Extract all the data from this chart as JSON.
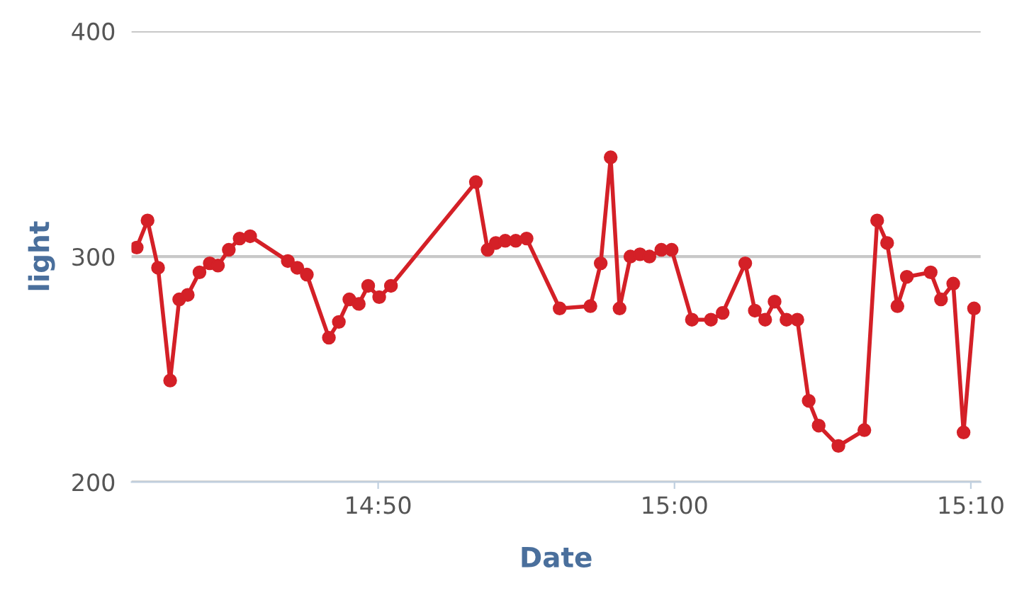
{
  "chart_data": {
    "type": "line",
    "xlabel": "Date",
    "ylabel": "light",
    "x": [
      14.6975,
      14.7036,
      14.7095,
      14.7163,
      14.7214,
      14.7262,
      14.7328,
      14.7386,
      14.7432,
      14.7493,
      14.7554,
      14.7613,
      14.7825,
      14.7878,
      14.7932,
      14.8056,
      14.8112,
      14.8171,
      14.8224,
      14.8277,
      14.8339,
      14.8405,
      14.8883,
      14.8949,
      14.8995,
      14.9048,
      14.9107,
      14.9168,
      14.9354,
      14.9527,
      14.9585,
      14.9641,
      14.9691,
      14.9752,
      14.9806,
      14.9859,
      14.9926,
      14.9984,
      15.0098,
      15.0205,
      15.0271,
      15.0398,
      15.0452,
      15.051,
      15.0563,
      15.063,
      15.0691,
      15.0755,
      15.0811,
      15.0922,
      15.1068,
      15.114,
      15.1196,
      15.1254,
      15.1307,
      15.1441,
      15.1499,
      15.1568,
      15.1626,
      15.1685
    ],
    "series": [
      {
        "color": "#d42027",
        "values": [
          304,
          316,
          295,
          245,
          281,
          283,
          293,
          297,
          296,
          303,
          308,
          309,
          298,
          295,
          292,
          264,
          271,
          281,
          279,
          287,
          282,
          287,
          333,
          303,
          306,
          307,
          307,
          308,
          277,
          278,
          297,
          344,
          277,
          300,
          301,
          300,
          303,
          303,
          272,
          272,
          275,
          297,
          276,
          272,
          280,
          272,
          272,
          236,
          225,
          216,
          223,
          316,
          306,
          278,
          291,
          293,
          281,
          288,
          222,
          277
        ]
      }
    ],
    "xlim": [
      14.6946,
      15.1722
    ],
    "xticks": [
      {
        "value": 14.8333,
        "label": "14:50"
      },
      {
        "value": 15.0,
        "label": "15:00"
      },
      {
        "value": 15.1667,
        "label": "15:10"
      }
    ],
    "ylim": [
      200,
      400
    ],
    "yticks": [
      200,
      300,
      400
    ],
    "grid": "y",
    "marker": "circle",
    "line_style": "solid"
  }
}
